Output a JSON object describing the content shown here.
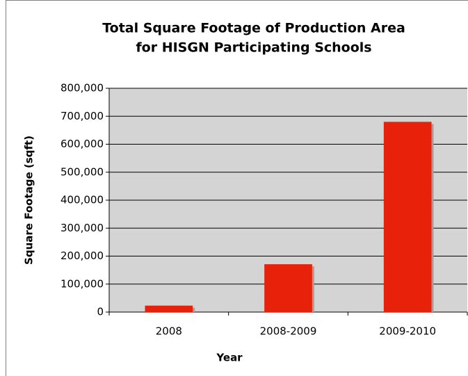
{
  "chart_data": {
    "type": "bar",
    "title": [
      "Total Square Footage of Production Area",
      "for HISGN Participating Schools"
    ],
    "x_label": "Year",
    "y_label": "Square Footage (sqft)",
    "categories": [
      "2008",
      "2008-2009",
      "2009-2010"
    ],
    "values": [
      23000,
      171000,
      680000
    ],
    "color": "#e8210a",
    "ylim": [
      0,
      800000
    ],
    "yticks": [
      0,
      {
        "value": 100000,
        "label": "100,000"
      },
      {
        "value": 200000,
        "label": "200,000"
      },
      {
        "value": 300000,
        "label": "300,000"
      },
      {
        "value": 400000,
        "label": "400,000"
      },
      {
        "value": 500000,
        "label": "500,000"
      },
      {
        "value": 600000,
        "label": "600,000"
      },
      {
        "value": 700000,
        "label": "700,000"
      },
      {
        "value": 800000,
        "label": "800,000"
      }
    ],
    "grid": true
  }
}
